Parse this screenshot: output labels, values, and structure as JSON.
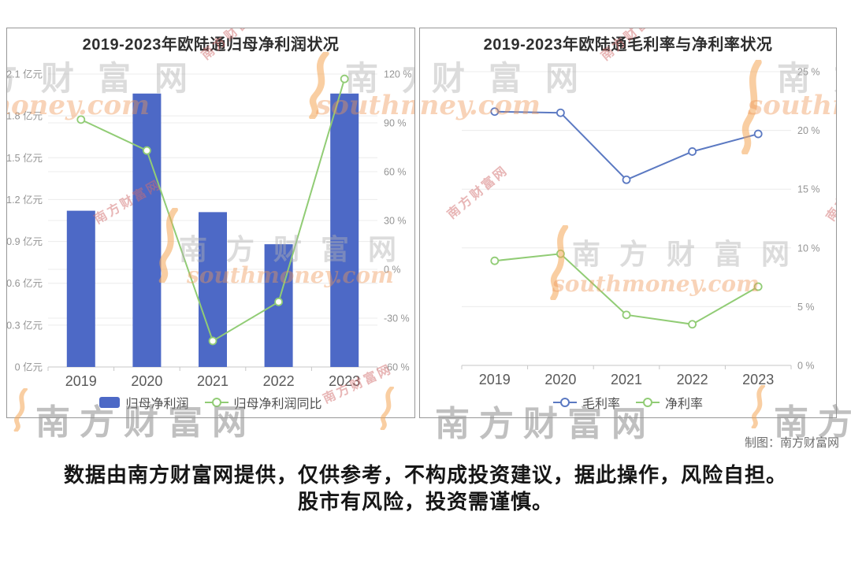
{
  "watermark": {
    "brand": "南方财富网",
    "domain": "southmoney.com",
    "brand_color": "rgba(178,178,178,0.45)",
    "brand_bottom_color": "rgba(140,140,140,0.55)",
    "domain_color": "rgba(238,150,85,0.42)",
    "stamp_color": "rgba(210,110,110,0.5)",
    "swoosh_color": "rgba(244,166,86,0.55)"
  },
  "footer": {
    "credit": "制图：南方财富网",
    "disclaimer_line1": "数据由南方财富网提供，仅供参考，不构成投资建议，据此操作，风险自担。",
    "disclaimer_line2": "股市有风险，投资需谨慎。"
  },
  "chart_data": [
    {
      "type": "bar",
      "title": "2019-2023年欧陆通归母净利润状况",
      "categories": [
        "2019",
        "2020",
        "2021",
        "2022",
        "2023"
      ],
      "series": [
        {
          "name": "归母净利润",
          "type": "bar",
          "unit": "亿元",
          "color": "#4D69C6",
          "values": [
            1.12,
            1.96,
            1.11,
            0.88,
            1.96
          ]
        },
        {
          "name": "归母净利润同比",
          "type": "line",
          "unit": "%",
          "color": "#91CC75",
          "values": [
            92,
            73,
            -44,
            -20,
            117
          ]
        }
      ],
      "left_axis": {
        "min": 0,
        "max": 2.1,
        "step": 0.3,
        "labels": [
          "0 亿元",
          "0.3 亿元",
          "0.6 亿元",
          "0.9 亿元",
          "1.2 亿元",
          "1.5 亿元",
          "1.8 亿元",
          "2.1 亿元"
        ]
      },
      "right_axis": {
        "min": -60,
        "max": 120,
        "step": 30,
        "labels": [
          "-60 %",
          "-30 %",
          "0 %",
          "30 %",
          "60 %",
          "90 %",
          "120 %"
        ]
      },
      "grid": true,
      "legend_position": "bottom"
    },
    {
      "type": "line",
      "title": "2019-2023年欧陆通毛利率与净利率状况",
      "categories": [
        "2019",
        "2020",
        "2021",
        "2022",
        "2023"
      ],
      "series": [
        {
          "name": "毛利率",
          "type": "line",
          "unit": "%",
          "color": "#5B79C2",
          "values": [
            21.6,
            21.5,
            15.8,
            18.2,
            19.7
          ]
        },
        {
          "name": "净利率",
          "type": "line",
          "unit": "%",
          "color": "#91CC75",
          "values": [
            8.9,
            9.5,
            4.3,
            3.5,
            6.7
          ]
        }
      ],
      "right_axis": {
        "min": 0,
        "max": 25,
        "step": 5,
        "labels": [
          "0 %",
          "5 %",
          "10 %",
          "15 %",
          "20 %",
          "25 %"
        ]
      },
      "grid": true,
      "legend_position": "bottom"
    }
  ]
}
